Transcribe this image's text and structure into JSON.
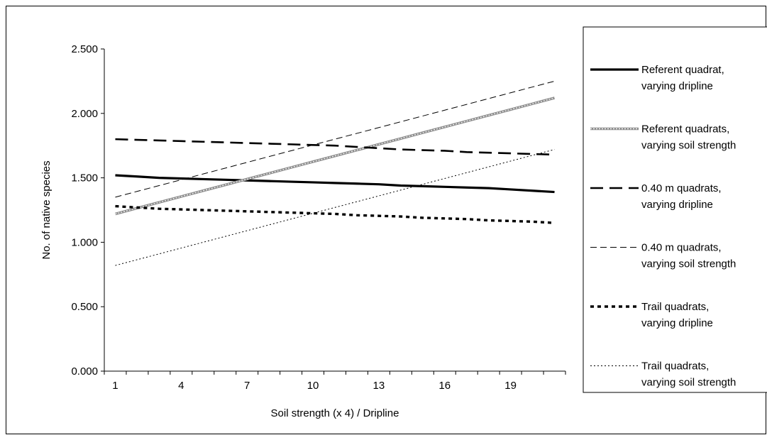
{
  "chart_data": {
    "type": "line",
    "title": "",
    "xlabel": "Soil strength (x 4) / Dripline",
    "ylabel": "No. of native species",
    "x": [
      1,
      2,
      3,
      4,
      5,
      6,
      7,
      8,
      9,
      10,
      11,
      12,
      13,
      14,
      15,
      16,
      17,
      18,
      19,
      20,
      21
    ],
    "x_tick_labels": [
      "1",
      "4",
      "7",
      "10",
      "13",
      "16",
      "19"
    ],
    "x_tick_values": [
      1,
      4,
      7,
      10,
      13,
      16,
      19
    ],
    "ylim": [
      0,
      2.5
    ],
    "y_ticks": [
      0,
      0.5,
      1.0,
      1.5,
      2.0,
      2.5
    ],
    "y_tick_labels": [
      "0.000",
      "0.500",
      "1.000",
      "1.500",
      "2.000",
      "2.500"
    ],
    "grid": false,
    "legend_position": "right",
    "series": [
      {
        "name": "Referent quadrat, varying dripline",
        "legend_lines": [
          "Referent quadrat,",
          "varying dripline"
        ],
        "style": "thick-solid",
        "color": "#000000",
        "values": [
          1.52,
          1.51,
          1.5,
          1.495,
          1.49,
          1.485,
          1.48,
          1.475,
          1.47,
          1.465,
          1.46,
          1.455,
          1.45,
          1.44,
          1.435,
          1.43,
          1.425,
          1.42,
          1.41,
          1.4,
          1.39
        ]
      },
      {
        "name": "Referent quadrats, varying soil strength",
        "legend_lines": [
          "Referent quadrats,",
          "varying soil strength"
        ],
        "style": "gray-double",
        "color": "#9a9a9a",
        "values": [
          1.22,
          1.265,
          1.31,
          1.355,
          1.4,
          1.445,
          1.49,
          1.535,
          1.58,
          1.625,
          1.67,
          1.715,
          1.76,
          1.805,
          1.85,
          1.895,
          1.94,
          1.985,
          2.03,
          2.075,
          2.12
        ]
      },
      {
        "name": "0.40 m quadrats, varying dripline",
        "legend_lines": [
          "0.40 m quadrats,",
          "varying dripline"
        ],
        "style": "long-dash",
        "color": "#000000",
        "values": [
          1.8,
          1.795,
          1.79,
          1.785,
          1.78,
          1.775,
          1.77,
          1.765,
          1.76,
          1.755,
          1.75,
          1.74,
          1.73,
          1.72,
          1.715,
          1.71,
          1.7,
          1.695,
          1.69,
          1.685,
          1.68
        ]
      },
      {
        "name": "0.40 m quadrats, varying soil strength",
        "legend_lines": [
          "0.40 m quadrats,",
          "varying soil strength"
        ],
        "style": "thin-dash",
        "color": "#000000",
        "values": [
          1.35,
          1.395,
          1.44,
          1.485,
          1.53,
          1.575,
          1.62,
          1.665,
          1.71,
          1.755,
          1.8,
          1.845,
          1.89,
          1.935,
          1.98,
          2.025,
          2.07,
          2.115,
          2.16,
          2.205,
          2.25
        ]
      },
      {
        "name": "Trail quadrats, varying dripline",
        "legend_lines": [
          "Trail quadrats,",
          "varying dripline"
        ],
        "style": "thick-dot",
        "color": "#000000",
        "values": [
          1.28,
          1.27,
          1.26,
          1.255,
          1.25,
          1.245,
          1.24,
          1.235,
          1.23,
          1.225,
          1.22,
          1.21,
          1.205,
          1.2,
          1.19,
          1.185,
          1.18,
          1.17,
          1.165,
          1.16,
          1.15
        ]
      },
      {
        "name": "Trail quadrats, varying soil strength",
        "legend_lines": [
          "Trail quadrats,",
          "varying soil strength"
        ],
        "style": "thin-dot",
        "color": "#000000",
        "values": [
          0.82,
          0.865,
          0.91,
          0.955,
          1.0,
          1.045,
          1.09,
          1.135,
          1.18,
          1.225,
          1.27,
          1.315,
          1.36,
          1.405,
          1.45,
          1.495,
          1.54,
          1.585,
          1.63,
          1.675,
          1.72
        ]
      }
    ]
  }
}
